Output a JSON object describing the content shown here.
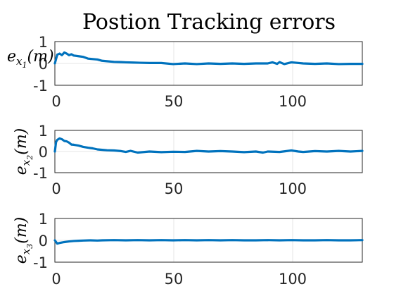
{
  "title": "Postion Tracking errors",
  "chart_data": [
    {
      "type": "line",
      "ylabel": {
        "base": "e",
        "sub": "x",
        "subsub": "1",
        "rest": "(m)"
      },
      "xlim": [
        0,
        130
      ],
      "ylim": [
        -1,
        1
      ],
      "xticks": [
        0,
        50,
        100
      ],
      "yticks": [
        1,
        0,
        -1
      ],
      "grid": true,
      "series": [
        {
          "color": "#0072bd",
          "x": [
            0,
            1,
            2,
            3,
            4,
            5,
            6,
            7,
            8,
            10,
            12,
            14,
            16,
            18,
            20,
            22,
            25,
            28,
            30,
            33,
            36,
            40,
            45,
            50,
            55,
            60,
            65,
            70,
            75,
            80,
            85,
            90,
            92,
            94,
            95,
            97,
            100,
            105,
            110,
            115,
            120,
            125,
            130
          ],
          "y": [
            0.0,
            0.4,
            0.45,
            0.38,
            0.5,
            0.45,
            0.38,
            0.42,
            0.36,
            0.33,
            0.3,
            0.22,
            0.2,
            0.18,
            0.12,
            0.1,
            0.07,
            0.06,
            0.05,
            0.04,
            0.03,
            0.02,
            0.02,
            -0.03,
            0.0,
            -0.03,
            0.0,
            -0.02,
            0.0,
            -0.02,
            0.0,
            0.0,
            0.05,
            -0.02,
            0.06,
            -0.03,
            0.05,
            0.0,
            -0.02,
            0.0,
            -0.03,
            -0.02,
            -0.02
          ]
        }
      ]
    },
    {
      "type": "line",
      "ylabel": {
        "base": "e",
        "sub": "x",
        "subsub": "2",
        "rest": "(m)"
      },
      "xlim": [
        0,
        130
      ],
      "ylim": [
        -1,
        1
      ],
      "xticks": [
        0,
        50,
        100
      ],
      "yticks": [
        1,
        0,
        -1
      ],
      "grid": true,
      "series": [
        {
          "color": "#0072bd",
          "x": [
            0,
            0.5,
            1,
            2,
            3,
            4,
            5,
            6,
            7,
            8,
            10,
            12,
            14,
            16,
            18,
            20,
            22,
            25,
            28,
            30,
            32,
            35,
            40,
            45,
            50,
            55,
            60,
            65,
            70,
            75,
            80,
            85,
            88,
            90,
            95,
            100,
            103,
            105,
            110,
            115,
            120,
            125,
            130
          ],
          "y": [
            0.0,
            0.45,
            0.55,
            0.62,
            0.58,
            0.5,
            0.48,
            0.42,
            0.33,
            0.32,
            0.28,
            0.22,
            0.18,
            0.15,
            0.1,
            0.08,
            0.06,
            0.05,
            0.02,
            -0.02,
            0.03,
            -0.05,
            0.0,
            -0.03,
            -0.01,
            -0.02,
            0.03,
            0.0,
            0.02,
            0.0,
            -0.03,
            0.0,
            -0.05,
            0.0,
            -0.02,
            0.05,
            0.0,
            -0.02,
            0.02,
            0.0,
            0.03,
            0.0,
            0.03
          ]
        }
      ]
    },
    {
      "type": "line",
      "ylabel": {
        "base": "e",
        "sub": "x",
        "subsub": "3",
        "rest": "(m)"
      },
      "xlim": [
        0,
        130
      ],
      "ylim": [
        -1,
        1
      ],
      "xticks": [
        0,
        50,
        100
      ],
      "yticks": [
        1,
        0,
        -1
      ],
      "grid": true,
      "series": [
        {
          "color": "#0072bd",
          "x": [
            0,
            1,
            2,
            4,
            6,
            8,
            10,
            12,
            15,
            18,
            20,
            25,
            30,
            35,
            40,
            45,
            50,
            55,
            60,
            65,
            70,
            75,
            80,
            85,
            90,
            95,
            100,
            105,
            110,
            115,
            120,
            125,
            130
          ],
          "y": [
            0.0,
            -0.15,
            -0.12,
            -0.08,
            -0.05,
            -0.03,
            -0.02,
            -0.01,
            0.0,
            -0.01,
            0.0,
            0.01,
            0.0,
            0.01,
            0.0,
            0.01,
            0.0,
            0.01,
            0.0,
            0.01,
            0.0,
            0.01,
            0.0,
            0.0,
            0.01,
            0.0,
            0.01,
            0.0,
            0.0,
            0.01,
            0.0,
            0.0,
            0.01
          ]
        }
      ]
    }
  ]
}
